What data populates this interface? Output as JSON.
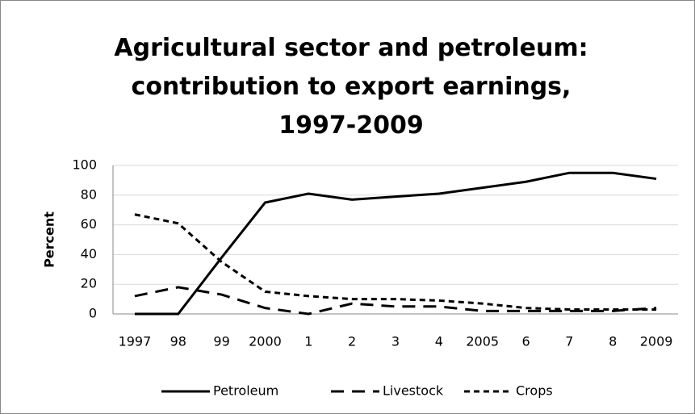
{
  "chart_data": {
    "type": "line",
    "title": "Agricultural sector and petroleum: contribution to export earnings, 1997-2009",
    "ylabel": "Percent",
    "categories": [
      "1997",
      "98",
      "99",
      "2000",
      "1",
      "2",
      "3",
      "4",
      "2005",
      "6",
      "7",
      "8",
      "2009"
    ],
    "series": [
      {
        "name": "Petroleum",
        "color": "#000000",
        "dash": "solid",
        "values": [
          0,
          0,
          38,
          75,
          81,
          77,
          79,
          81,
          85,
          89,
          95,
          95,
          91
        ]
      },
      {
        "name": "Livestock",
        "color": "#000000",
        "dash": "long",
        "values": [
          12,
          18,
          13,
          4,
          0,
          7,
          5,
          5,
          2,
          2,
          2,
          2,
          4
        ]
      },
      {
        "name": "Crops",
        "color": "#000000",
        "dash": "short",
        "values": [
          67,
          61,
          35,
          15,
          12,
          10,
          10,
          9,
          7,
          4,
          3,
          3,
          3
        ]
      }
    ],
    "ylim": [
      0,
      100
    ],
    "yticks": [
      0,
      20,
      40,
      60,
      80,
      100
    ],
    "grid": true,
    "legend": "bottom"
  }
}
